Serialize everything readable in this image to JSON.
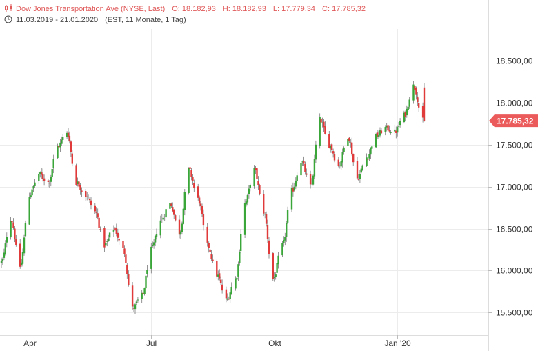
{
  "header": {
    "instrument": "Dow Jones Transportation Ave (NYSE, Last)",
    "open": "O: 18.182,93",
    "high": "H: 18.182,93",
    "low": "L: 17.779,34",
    "close": "C: 17.785,32",
    "range": "11.03.2019 - 21.01.2020",
    "meta": "(EST, 11 Monate, 1 Tag)"
  },
  "last_price_label": "17.785,32",
  "colors": {
    "up": "#3aa63a",
    "down": "#e03a3a",
    "accent": "#e05a5a",
    "grid": "#ececec"
  },
  "chart_data": {
    "type": "candlestick",
    "y_ticks": [
      15500,
      16000,
      16500,
      17000,
      17500,
      18000,
      18500
    ],
    "y_tick_labels": [
      "15.500,00",
      "16.000,00",
      "16.500,00",
      "17.000,00",
      "17.500,00",
      "18.000,00",
      "18.500,00"
    ],
    "ylim": [
      15230,
      18880
    ],
    "x_ticks": [
      "Apr",
      "Jul",
      "Okt",
      "Jan '20"
    ],
    "x_tick_dates": [
      "2019-04-01",
      "2019-07-01",
      "2019-10-01",
      "2020-01-01"
    ],
    "date_range": [
      "2019-03-11",
      "2020-01-21"
    ],
    "last_close": 17785.32,
    "close_path": [
      [
        "2019-03-11",
        16100
      ],
      [
        "2019-03-18",
        16620
      ],
      [
        "2019-03-25",
        16050
      ],
      [
        "2019-04-01",
        16900
      ],
      [
        "2019-04-08",
        17150
      ],
      [
        "2019-04-15",
        17050
      ],
      [
        "2019-04-22",
        17480
      ],
      [
        "2019-04-29",
        17650
      ],
      [
        "2019-05-06",
        17050
      ],
      [
        "2019-05-13",
        16900
      ],
      [
        "2019-05-20",
        16700
      ],
      [
        "2019-05-27",
        16300
      ],
      [
        "2019-06-03",
        16500
      ],
      [
        "2019-06-10",
        16250
      ],
      [
        "2019-06-17",
        15550
      ],
      [
        "2019-06-24",
        15700
      ],
      [
        "2019-07-01",
        16250
      ],
      [
        "2019-07-08",
        16600
      ],
      [
        "2019-07-15",
        16800
      ],
      [
        "2019-07-22",
        16450
      ],
      [
        "2019-07-29",
        17200
      ],
      [
        "2019-08-05",
        16850
      ],
      [
        "2019-08-12",
        16300
      ],
      [
        "2019-08-19",
        15950
      ],
      [
        "2019-08-26",
        15650
      ],
      [
        "2019-09-02",
        15900
      ],
      [
        "2019-09-09",
        16800
      ],
      [
        "2019-09-16",
        17200
      ],
      [
        "2019-09-23",
        16700
      ],
      [
        "2019-09-30",
        15900
      ],
      [
        "2019-10-07",
        16300
      ],
      [
        "2019-10-14",
        16950
      ],
      [
        "2019-10-21",
        17300
      ],
      [
        "2019-10-28",
        17000
      ],
      [
        "2019-11-04",
        17800
      ],
      [
        "2019-11-11",
        17500
      ],
      [
        "2019-11-18",
        17250
      ],
      [
        "2019-11-25",
        17600
      ],
      [
        "2019-12-02",
        17100
      ],
      [
        "2019-12-09",
        17350
      ],
      [
        "2019-12-16",
        17600
      ],
      [
        "2019-12-23",
        17700
      ],
      [
        "2019-12-30",
        17650
      ],
      [
        "2020-01-06",
        17850
      ],
      [
        "2020-01-13",
        18200
      ],
      [
        "2020-01-20",
        17790
      ]
    ]
  }
}
